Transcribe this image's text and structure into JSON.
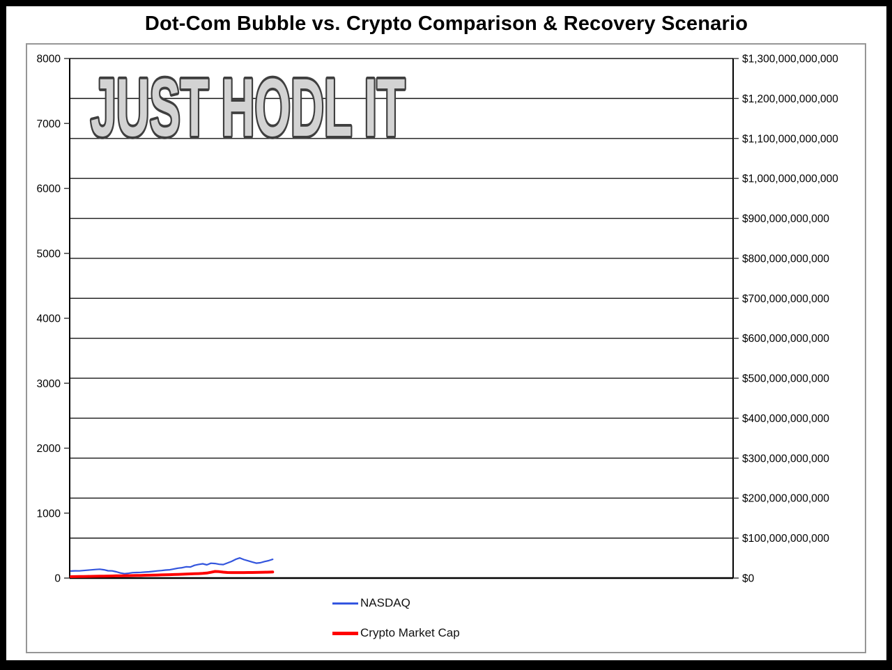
{
  "page": {
    "title": "Dot-Com Bubble vs. Crypto Comparison & Recovery Scenario",
    "watermark": "JUST HODL IT"
  },
  "legend": {
    "items": [
      {
        "label": "NASDAQ",
        "color": "#3456e0",
        "swatch": "thin-line"
      },
      {
        "label": "Crypto Market Cap",
        "color": "#ff0000",
        "swatch": "thick-line"
      }
    ]
  },
  "chart_data": {
    "type": "line",
    "title": "Dot-Com Bubble vs. Crypto Comparison & Recovery Scenario",
    "watermark_text": "JUST HODL IT",
    "x_axis": {
      "tick_labels": [],
      "note": "no x-axis tick labels are shown; plotted data occupies only the left ~31% of the plot width, the rest is empty scenario space"
    },
    "left_axis": {
      "min": 0,
      "max": 8000,
      "tick_step": 1000,
      "tick_labels": [
        "0",
        "1000",
        "2000",
        "3000",
        "4000",
        "5000",
        "6000",
        "7000",
        "8000"
      ]
    },
    "right_axis": {
      "min": 0,
      "max": 1300000000000,
      "tick_step": 100000000000,
      "tick_labels": [
        "$0",
        "$100,000,000,000",
        "$200,000,000,000",
        "$300,000,000,000",
        "$400,000,000,000",
        "$500,000,000,000",
        "$600,000,000,000",
        "$700,000,000,000",
        "$800,000,000,000",
        "$900,000,000,000",
        "$1,000,000,000,000",
        "$1,100,000,000,000",
        "$1,200,000,000,000",
        "$1,300,000,000,000"
      ]
    },
    "grid": "horizontal-only",
    "legend_position": "bottom-center",
    "series": [
      {
        "name": "NASDAQ",
        "id": "nasdaq-line",
        "axis": "left",
        "color": "#3355dd",
        "stroke_width": 2.2,
        "x_start_frac": 0.002,
        "x_end_frac": 0.306,
        "values": [
          108,
          111,
          110,
          116,
          121,
          127,
          132,
          136,
          128,
          113,
          110,
          96,
          78,
          68,
          74,
          84,
          86,
          88,
          92,
          96,
          103,
          110,
          116,
          123,
          128,
          141,
          152,
          160,
          174,
          170,
          196,
          210,
          220,
          204,
          228,
          224,
          212,
          208,
          232,
          256,
          288,
          310,
          284,
          266,
          248,
          230,
          236,
          254,
          268,
          288
        ]
      },
      {
        "name": "Crypto Market Cap",
        "id": "crypto-market-cap-line",
        "axis": "right",
        "color": "#ff0000",
        "stroke_width": 4,
        "x_start_frac": 0.002,
        "x_end_frac": 0.306,
        "values": [
          3500000000,
          3600000000,
          3800000000,
          3900000000,
          4100000000,
          4300000000,
          4500000000,
          4700000000,
          4900000000,
          5100000000,
          5300000000,
          5500000000,
          5700000000,
          5900000000,
          6100000000,
          6300000000,
          6500000000,
          6700000000,
          6900000000,
          7100000000,
          7400000000,
          7700000000,
          8000000000,
          8300000000,
          8600000000,
          8900000000,
          9200000000,
          9600000000,
          10000000000,
          10400000000,
          10800000000,
          11200000000,
          11700000000,
          12500000000,
          14500000000,
          16500000000,
          16000000000,
          14800000000,
          14000000000,
          13800000000,
          13700000000,
          13700000000,
          13800000000,
          13900000000,
          14000000000,
          14200000000,
          14400000000,
          14600000000,
          14800000000,
          15200000000
        ]
      }
    ]
  }
}
